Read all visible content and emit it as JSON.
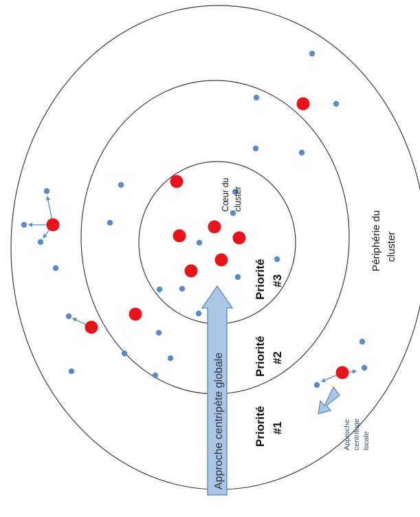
{
  "labels": {
    "coeur_line1": "Cœur du",
    "coeur_line2": "cluster",
    "peripherie_line1": "Périphérie du",
    "peripherie_line2": "cluster",
    "priorite1_line1": "Priorité",
    "priorite1_line2": "#1",
    "priorite2_line1": "Priorité",
    "priorite2_line2": "#2",
    "priorite3_line1": "Priorité",
    "priorite3_line2": "#3",
    "centripete": "Approche centripète globale",
    "centrifuge_line1": "Approche",
    "centrifuge_line2": "centrifuge",
    "centrifuge_line3": "locale"
  },
  "colors": {
    "ring": "#3a3a3a",
    "red_node": "#e8141b",
    "blue_node": "#5b8bc0",
    "arrow_fill": "#a9c6e8",
    "arrow_stroke": "#5b86b8"
  }
}
